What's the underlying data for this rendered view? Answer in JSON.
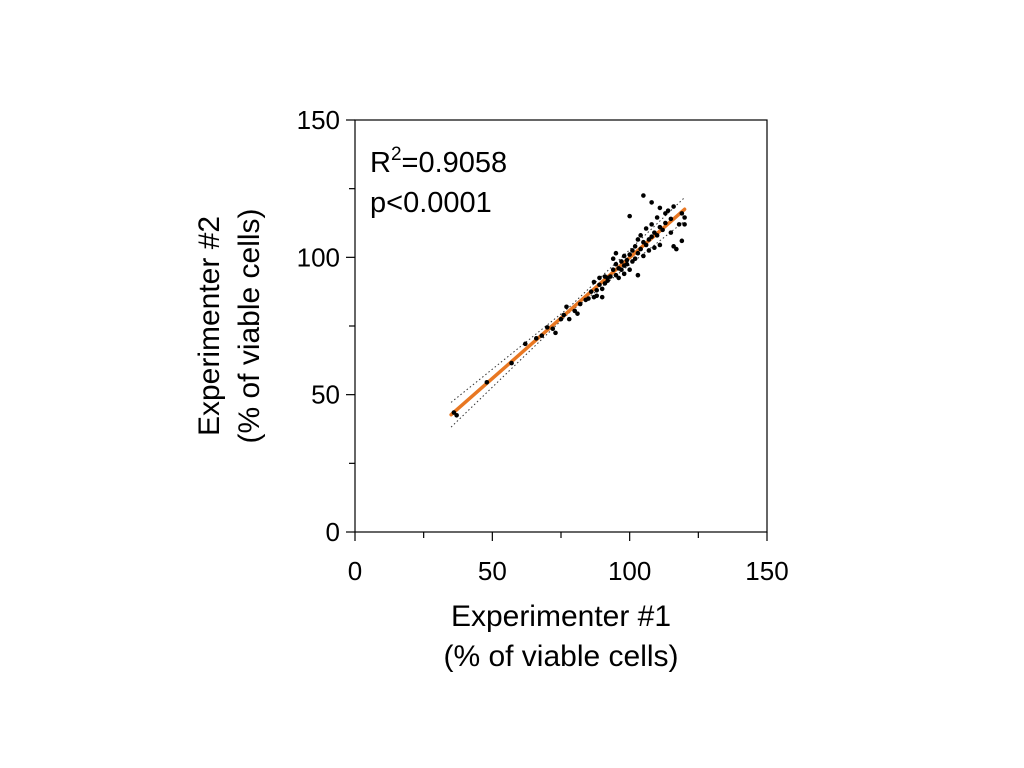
{
  "chart_data": {
    "type": "scatter",
    "title": "",
    "xlabel": [
      "Experimenter #1",
      "(% of viable cells)"
    ],
    "ylabel": [
      "Experimenter #2",
      "(% of viable cells)"
    ],
    "xlim": [
      0,
      150
    ],
    "ylim": [
      0,
      150
    ],
    "x_ticks": [
      0,
      50,
      100,
      150
    ],
    "y_ticks": [
      0,
      50,
      100,
      150
    ],
    "x_tick_labels": [
      "0",
      "50",
      "100",
      "150"
    ],
    "y_tick_labels": [
      "0",
      "50",
      "100",
      "150"
    ],
    "grid": false,
    "annotations": {
      "r2_prefix": "R",
      "r2_sup": "2",
      "r2_value": "=0.9058",
      "p_value": "p<0.0001"
    },
    "series": [
      {
        "color": "#000000",
        "points": [
          [
            36,
            43.5
          ],
          [
            37,
            42.5
          ],
          [
            48,
            54.5
          ],
          [
            57,
            61.5
          ],
          [
            62,
            68.5
          ],
          [
            66,
            70.5
          ],
          [
            68,
            71.5
          ],
          [
            70,
            74.5
          ],
          [
            72,
            74
          ],
          [
            73,
            72.5
          ],
          [
            75,
            77.5
          ],
          [
            76,
            79
          ],
          [
            77,
            82
          ],
          [
            78,
            77.5
          ],
          [
            80,
            80.5
          ],
          [
            81,
            79.5
          ],
          [
            82,
            83
          ],
          [
            84,
            84.5
          ],
          [
            85,
            85
          ],
          [
            86,
            87.5
          ],
          [
            87,
            85.5
          ],
          [
            87,
            91
          ],
          [
            88,
            88
          ],
          [
            88,
            86
          ],
          [
            89,
            90
          ],
          [
            89,
            92.5
          ],
          [
            90,
            85.5
          ],
          [
            90,
            88.5
          ],
          [
            91,
            90.5
          ],
          [
            91,
            93
          ],
          [
            92,
            91.5
          ],
          [
            92,
            92.5
          ],
          [
            93,
            93
          ],
          [
            94,
            95.5
          ],
          [
            94,
            99.5
          ],
          [
            95,
            93.5
          ],
          [
            95,
            97.5
          ],
          [
            95,
            101.5
          ],
          [
            96,
            96
          ],
          [
            96,
            92.5
          ],
          [
            97,
            98.5
          ],
          [
            97,
            95.5
          ],
          [
            98,
            97
          ],
          [
            98,
            100.5
          ],
          [
            98,
            94
          ],
          [
            99,
            99
          ],
          [
            99,
            97.5
          ],
          [
            100,
            101
          ],
          [
            100,
            95.5
          ],
          [
            100,
            115
          ],
          [
            101,
            98.5
          ],
          [
            101,
            102.5
          ],
          [
            102,
            104
          ],
          [
            102,
            99.5
          ],
          [
            103,
            101.5
          ],
          [
            103,
            106.5
          ],
          [
            103,
            93.5
          ],
          [
            104,
            103
          ],
          [
            104,
            108
          ],
          [
            105,
            105.5
          ],
          [
            105,
            122.5
          ],
          [
            105,
            100.5
          ],
          [
            106,
            104.5
          ],
          [
            106,
            110.5
          ],
          [
            107,
            106.5
          ],
          [
            107,
            102.5
          ],
          [
            108,
            107.5
          ],
          [
            108,
            112
          ],
          [
            108,
            120
          ],
          [
            109,
            109
          ],
          [
            109,
            103.5
          ],
          [
            110,
            108
          ],
          [
            110,
            114.5
          ],
          [
            111,
            111
          ],
          [
            111,
            118
          ],
          [
            111,
            104.5
          ],
          [
            112,
            110
          ],
          [
            113,
            112.5
          ],
          [
            113,
            116
          ],
          [
            114,
            117
          ],
          [
            115,
            114
          ],
          [
            115,
            109
          ],
          [
            116,
            118.5
          ],
          [
            116,
            104
          ],
          [
            117,
            103
          ],
          [
            118,
            112
          ],
          [
            119,
            106
          ],
          [
            119,
            116
          ],
          [
            120,
            114.5
          ],
          [
            120,
            112
          ]
        ]
      }
    ],
    "fit_line": {
      "color": "#e87722",
      "x": [
        35,
        120
      ],
      "y": [
        42.7,
        117.5
      ]
    },
    "confidence_band": {
      "x": [
        35,
        78,
        120
      ],
      "lower": [
        38.2,
        79.8,
        113.2
      ],
      "upper": [
        47.2,
        81.8,
        121.8
      ]
    }
  }
}
